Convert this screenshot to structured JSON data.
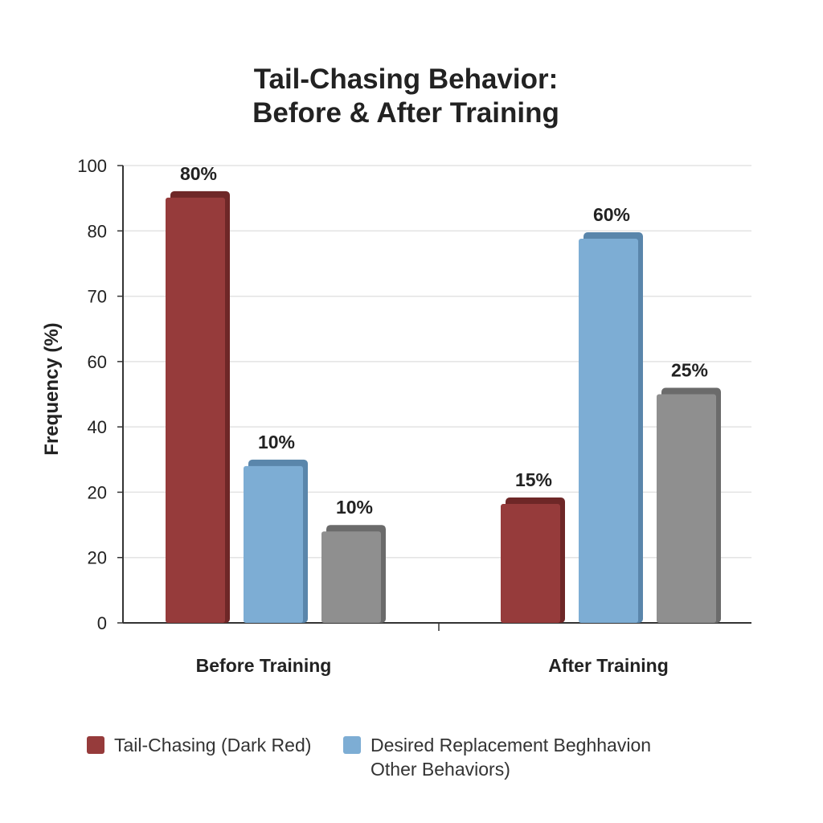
{
  "chart_data": {
    "type": "bar",
    "title": "Tail-Chasing Behavior: Before & After Training",
    "title_lines": [
      "Tail-Chasing Behavior:",
      "Before & After Training"
    ],
    "ylabel": "Frequency (%)",
    "ylabel_as_printed": "Frequency (%)",
    "ytick_labels": [
      "0",
      "20",
      "20",
      "40",
      "60",
      "70",
      "80",
      "100"
    ],
    "ylim": [
      0,
      100
    ],
    "grid": true,
    "categories": [
      "Before Training",
      "After Training"
    ],
    "series": [
      {
        "name": "Tail-Chasing (Dark Red)",
        "color": "#963b3b",
        "values": [
          80,
          15
        ],
        "labels": [
          "80%",
          "15%"
        ]
      },
      {
        "name": "Desired Replacement Beghhavion",
        "color": "#7dadd4",
        "values": [
          10,
          60
        ],
        "labels": [
          "10%",
          "60%"
        ]
      },
      {
        "name": "Other Behaviors)",
        "color": "#8f8f8f",
        "values": [
          10,
          25
        ],
        "labels": [
          "10%",
          "25%"
        ]
      }
    ],
    "legend": {
      "position": "bottom",
      "items": [
        "Tail-Chasing (Dark Red)",
        "Desired Replacement Beghhavion",
        "Other Behaviors)"
      ]
    }
  }
}
